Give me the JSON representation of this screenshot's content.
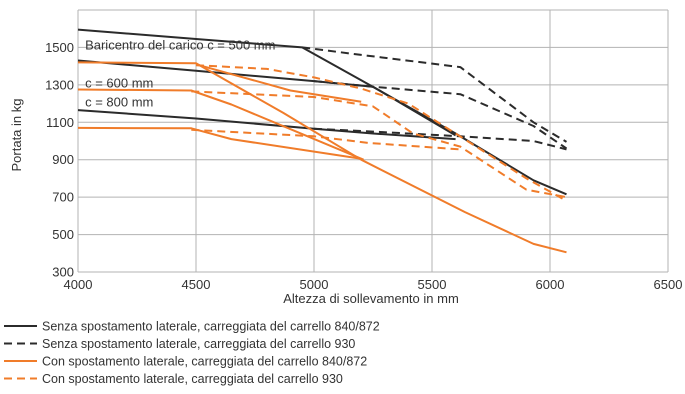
{
  "chart_data": {
    "type": "line",
    "title": "",
    "xlabel": "Altezza di sollevamento in mm",
    "ylabel": "Portata in kg",
    "xlim": [
      4000,
      6500
    ],
    "ylim": [
      300,
      1700
    ],
    "xticks": [
      4000,
      4500,
      5000,
      5500,
      6000,
      6500
    ],
    "yticks": [
      300,
      500,
      700,
      900,
      1100,
      1300,
      1500
    ],
    "grid": true,
    "legend_position": "bottom",
    "colors": {
      "black": "#2b2b2b",
      "orange": "#f07c2a",
      "grid": "#b3b3b3"
    },
    "annotations": [
      {
        "text": "Baricentro del carico c = 500 mm",
        "x": 4030,
        "y": 1490
      },
      {
        "text": "c = 600 mm",
        "x": 4030,
        "y": 1285
      },
      {
        "text": "c = 800 mm",
        "x": 4030,
        "y": 1185
      }
    ],
    "series": [
      {
        "name": "Senza spostamento laterale, carreggiata del carrello 840/872",
        "style": "solid",
        "color": "black",
        "lines": [
          {
            "x": [
              4000,
              4500,
              4950,
              5200,
              5600,
              5930,
              6070
            ],
            "y": [
              1595,
              1545,
              1500,
              1325,
              1040,
              790,
              715
            ]
          },
          {
            "x": [
              4000,
              4500,
              5000,
              5250,
              5600
            ],
            "y": [
              1430,
              1375,
              1320,
              1290,
              1030
            ]
          },
          {
            "x": [
              4000,
              4500,
              5000,
              5250,
              5600
            ],
            "y": [
              1165,
              1120,
              1065,
              1040,
              1010
            ]
          }
        ]
      },
      {
        "name": "Senza spostamento laterale, carreggiata del carrello 930",
        "style": "dashed",
        "color": "black",
        "lines": [
          {
            "x": [
              4950,
              5200,
              5620,
              5930,
              6070
            ],
            "y": [
              1500,
              1460,
              1395,
              1100,
              995
            ]
          },
          {
            "x": [
              5000,
              5250,
              5620,
              5930,
              6070
            ],
            "y": [
              1320,
              1290,
              1250,
              1080,
              960
            ]
          },
          {
            "x": [
              5000,
              5250,
              5620,
              5930,
              6070
            ],
            "y": [
              1065,
              1050,
              1025,
              1000,
              955
            ]
          }
        ]
      },
      {
        "name": "Con spostamento laterale, carreggiata del carrello 840/872",
        "style": "solid",
        "color": "orange",
        "lines": [
          {
            "x": [
              4000,
              4500,
              4870,
              5200,
              5640,
              5930,
              6070
            ],
            "y": [
              1420,
              1415,
              1150,
              900,
              620,
              450,
              405
            ]
          },
          {
            "x": [
              4000,
              4480,
              4650,
              5210
            ],
            "y": [
              1275,
              1270,
              1195,
              900
            ]
          },
          {
            "x": [
              4000,
              4480,
              4650,
              5200
            ],
            "y": [
              1070,
              1068,
              1010,
              905
            ]
          },
          {
            "x": [
              4500,
              4900,
              5200
            ],
            "y": [
              1410,
              1270,
              1210
            ]
          }
        ]
      },
      {
        "name": "Con spostamento laterale, carreggiata del carrello 930",
        "style": "dashed",
        "color": "orange",
        "lines": [
          {
            "x": [
              4500,
              4800,
              5000,
              5200,
              5400,
              5700,
              5900,
              6070
            ],
            "y": [
              1405,
              1385,
              1340,
              1280,
              1200,
              960,
              800,
              680
            ]
          },
          {
            "x": [
              4480,
              5000,
              5250,
              5420,
              5620,
              5900,
              6070
            ],
            "y": [
              1265,
              1235,
              1185,
              1040,
              970,
              740,
              700
            ]
          },
          {
            "x": [
              4480,
              5000,
              5230,
              5620
            ],
            "y": [
              1060,
              1025,
              990,
              955
            ]
          }
        ]
      }
    ]
  }
}
